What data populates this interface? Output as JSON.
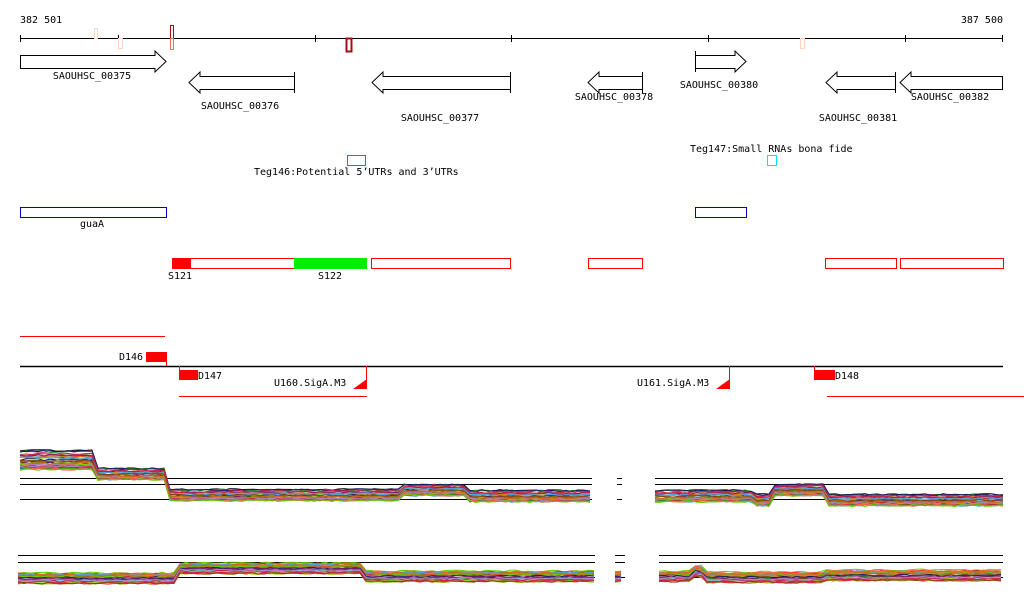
{
  "ruler": {
    "start_label": "382 501",
    "end_label": "387 500"
  },
  "genes": [
    {
      "name": "SAOUHSC_00375",
      "strand": "+"
    },
    {
      "name": "SAOUHSC_00376",
      "strand": "-"
    },
    {
      "name": "SAOUHSC_00377",
      "strand": "-"
    },
    {
      "name": "SAOUHSC_00378",
      "strand": "-"
    },
    {
      "name": "SAOUHSC_00380",
      "strand": "+"
    },
    {
      "name": "SAOUHSC_00381",
      "strand": "-"
    },
    {
      "name": "SAOUHSC_00382",
      "strand": "-"
    }
  ],
  "features": {
    "teg146": "Teg146:Potential 5’UTRs and 3’UTRs",
    "teg147": "Teg147:Small RNAs bona fide",
    "guaA": "guaA",
    "s121": "S121",
    "s122": "S122",
    "d146": "D146",
    "d147": "D147",
    "d148": "D148",
    "u160": "U160.SigA.M3",
    "u161": "U161.SigA.M3"
  },
  "colors": {
    "operon": "#0000cc",
    "segment": "#ff0000",
    "segment_highlight": "#00ee00",
    "teg146": "#ff00ff",
    "teg147": "#00e5ee",
    "expression_palette": [
      "#e0701f",
      "#7a1f6e",
      "#4aa3e0",
      "#66cc00",
      "#8b4513",
      "#cc2255",
      "#b07fc0",
      "#d2691e",
      "#228b22",
      "#1a1a60",
      "#c8a24a",
      "#ff6347",
      "#9acd32",
      "#808000",
      "#dc143c",
      "#87ceeb"
    ]
  }
}
